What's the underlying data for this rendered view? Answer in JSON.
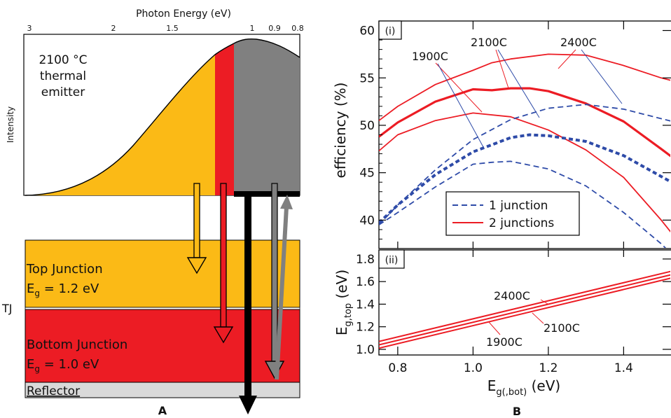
{
  "panel_a": {
    "top_axis_label": "Photon Energy (eV)",
    "top_ticks": [
      "3",
      "2",
      "1.5",
      "1",
      "0.9",
      "0.8"
    ],
    "y_label": "Intensity",
    "emitter_label": [
      "2100 °C",
      "thermal",
      "emitter"
    ],
    "top_junction": {
      "name": "Top Junction",
      "eg_prefix": "E",
      "eg_sub": "g",
      "eg_value": " = 1.2 eV"
    },
    "tj_label": "TJ",
    "bottom_junction": {
      "name": "Bottom Junction",
      "eg_prefix": "E",
      "eg_sub": "g",
      "eg_value": " = 1.0 eV"
    },
    "reflector_label": "Reflector",
    "caption": "A",
    "colors": {
      "yellow": "#FBBA16",
      "red": "#EC1C24",
      "gray": "#808080",
      "reflector": "#D9D9D9"
    }
  },
  "panel_b": {
    "caption": "B",
    "xlabel_main": "E",
    "xlabel_sub": "g(,bot)",
    "xlabel_unit": " (eV)",
    "x_ticks": [
      "0.8",
      "1.0",
      "1.2",
      "1.4"
    ],
    "top_tag": "(i)",
    "bottom_tag": "(ii)",
    "top_ylabel": "efficiency (%)",
    "bottom_ylabel_main": "E",
    "bottom_ylabel_sub": "g,top",
    "bottom_ylabel_unit": " (eV)",
    "top_y_ticks": [
      "60",
      "55",
      "50",
      "45",
      "40"
    ],
    "bottom_y_ticks": [
      "1.8",
      "1.6",
      "1.4",
      "1.2",
      "1.0"
    ],
    "legend": [
      "1 junction",
      "2 junctions"
    ],
    "annotations_top": [
      "1900C",
      "2100C",
      "2400C"
    ],
    "annotations_bottom": [
      "2400C",
      "2100C",
      "1900C"
    ]
  },
  "chart_data": {
    "type": "line",
    "x_range": [
      0.75,
      1.55
    ],
    "efficiency_ylim": [
      37,
      61
    ],
    "eg_top_ylim": [
      0.95,
      1.88
    ],
    "series_efficiency": [
      {
        "name": "2 junctions",
        "temp": "2400C",
        "style": "solid",
        "width": "thin",
        "x": [
          0.75,
          0.8,
          0.9,
          1.0,
          1.05,
          1.1,
          1.2,
          1.3,
          1.4,
          1.5,
          1.55
        ],
        "y": [
          50.5,
          52.0,
          54.3,
          55.8,
          56.6,
          57.0,
          57.5,
          57.4,
          56.3,
          55.0,
          54.5
        ]
      },
      {
        "name": "2 junctions",
        "temp": "2100C",
        "style": "solid",
        "width": "thick",
        "x": [
          0.75,
          0.8,
          0.9,
          1.0,
          1.05,
          1.1,
          1.15,
          1.2,
          1.3,
          1.4,
          1.5,
          1.55
        ],
        "y": [
          48.8,
          50.3,
          52.5,
          53.8,
          53.7,
          53.9,
          53.9,
          53.6,
          52.3,
          50.4,
          47.5,
          46.0
        ]
      },
      {
        "name": "2 junctions",
        "temp": "1900C",
        "style": "solid",
        "width": "thin",
        "x": [
          0.75,
          0.8,
          0.9,
          1.0,
          1.1,
          1.2,
          1.3,
          1.4,
          1.5,
          1.55
        ],
        "y": [
          47.3,
          49.0,
          50.5,
          51.3,
          50.9,
          49.5,
          47.4,
          44.5,
          40.0,
          37.5
        ]
      },
      {
        "name": "1 junction",
        "temp": "2400C",
        "style": "dashed",
        "width": "thin",
        "x": [
          0.75,
          0.8,
          0.9,
          1.0,
          1.1,
          1.2,
          1.3,
          1.4,
          1.5,
          1.55
        ],
        "y": [
          39.5,
          41.6,
          45.3,
          48.5,
          50.6,
          51.8,
          52.2,
          51.7,
          50.7,
          50.2
        ]
      },
      {
        "name": "1 junction",
        "temp": "2100C",
        "style": "dashed",
        "width": "thick",
        "x": [
          0.75,
          0.8,
          0.9,
          1.0,
          1.1,
          1.15,
          1.2,
          1.3,
          1.4,
          1.5,
          1.55
        ],
        "y": [
          39.7,
          41.6,
          44.8,
          47.2,
          48.7,
          49.0,
          48.9,
          48.3,
          46.8,
          44.6,
          43.5
        ]
      },
      {
        "name": "1 junction",
        "temp": "1900C",
        "style": "dashed",
        "width": "thin",
        "x": [
          0.75,
          0.8,
          0.9,
          1.0,
          1.05,
          1.1,
          1.2,
          1.3,
          1.4,
          1.5,
          1.55
        ],
        "y": [
          39.5,
          40.8,
          43.5,
          45.9,
          46.1,
          46.2,
          45.4,
          43.6,
          40.8,
          37.5,
          35.5
        ]
      }
    ],
    "series_eg_top": [
      {
        "temp": "2400C",
        "x": [
          0.75,
          1.55
        ],
        "y": [
          1.07,
          1.71
        ]
      },
      {
        "temp": "2100C",
        "x": [
          0.75,
          1.55
        ],
        "y": [
          1.04,
          1.68
        ]
      },
      {
        "temp": "1900C",
        "x": [
          0.75,
          1.55
        ],
        "y": [
          1.01,
          1.65
        ]
      }
    ]
  }
}
